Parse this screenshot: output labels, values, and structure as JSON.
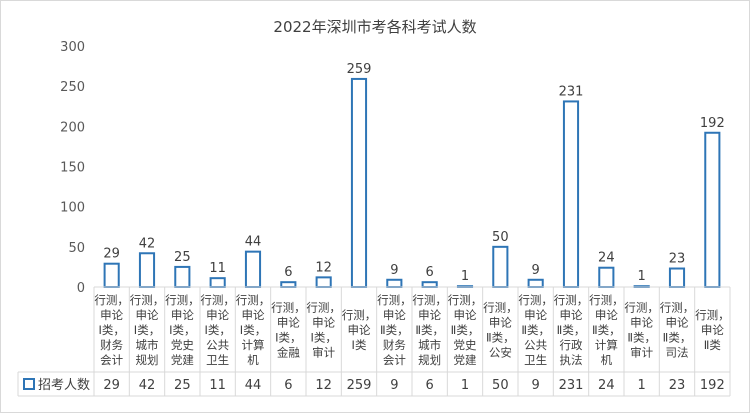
{
  "chart_data": {
    "type": "bar",
    "title": "2022年深圳市考各科考试人数",
    "ylim": [
      0,
      300
    ],
    "yticks": [
      0,
      50,
      100,
      150,
      200,
      250,
      300
    ],
    "grid": false,
    "legend": "bottom-left (data table)",
    "series": [
      {
        "name": "招考人数",
        "values": [
          29,
          42,
          25,
          11,
          44,
          6,
          12,
          259,
          9,
          6,
          1,
          50,
          9,
          231,
          24,
          1,
          23,
          192
        ]
      }
    ],
    "categories": [
      "行测，申论Ⅰ类，财务会计",
      "行测，申论Ⅰ类，城市规划",
      "行测，申论Ⅰ类，党史党建",
      "行测，申论Ⅰ类，公共卫生",
      "行测，申论Ⅰ类，计算机",
      "行测，申论Ⅰ类，金融",
      "行测，申论Ⅰ类，审计",
      "行测，申论Ⅰ类",
      "行测，申论Ⅱ类，财务会计",
      "行测，申论Ⅱ类，城市规划",
      "行测，申论Ⅱ类，党史党建",
      "行测，申论Ⅱ类，公安",
      "行测，申论Ⅱ类，公共卫生",
      "行测，申论Ⅱ类，行政执法",
      "行测，申论Ⅱ类，计算机",
      "行测，申论Ⅱ类，审计",
      "行测，申论Ⅱ类，司法",
      "行测，申论Ⅱ类"
    ],
    "category_lines": [
      [
        "行测，",
        "申论",
        "Ⅰ类，",
        "财务",
        "会计"
      ],
      [
        "行测，",
        "申论",
        "Ⅰ类，",
        "城市",
        "规划"
      ],
      [
        "行测，",
        "申论",
        "Ⅰ类，",
        "党史",
        "党建"
      ],
      [
        "行测，",
        "申论",
        "Ⅰ类，",
        "公共",
        "卫生"
      ],
      [
        "行测，",
        "申论",
        "Ⅰ类，",
        "计算",
        "机"
      ],
      [
        "行测，",
        "申论",
        "Ⅰ类，",
        "金融"
      ],
      [
        "行测，",
        "申论",
        "Ⅰ类，",
        "审计"
      ],
      [
        "行测，",
        "申论",
        "Ⅰ类"
      ],
      [
        "行测，",
        "申论",
        "Ⅱ类，",
        "财务",
        "会计"
      ],
      [
        "行测，",
        "申论",
        "Ⅱ类，",
        "城市",
        "规划"
      ],
      [
        "行测，",
        "申论",
        "Ⅱ类，",
        "党史",
        "党建"
      ],
      [
        "行测，",
        "申论",
        "Ⅱ类，",
        "公安"
      ],
      [
        "行测，",
        "申论",
        "Ⅱ类，",
        "公共",
        "卫生"
      ],
      [
        "行测，",
        "申论",
        "Ⅱ类，",
        "行政",
        "执法"
      ],
      [
        "行测，",
        "申论",
        "Ⅱ类，",
        "计算",
        "机"
      ],
      [
        "行测，",
        "申论",
        "Ⅱ类，",
        "审计"
      ],
      [
        "行测，",
        "申论",
        "Ⅱ类，",
        "司法"
      ],
      [
        "行测，",
        "申论",
        "Ⅱ类"
      ]
    ],
    "colors": {
      "bar_stroke": "#2e75b6",
      "bar_fill": "#ffffff",
      "axis": "#d9d9d9",
      "text": "#404040"
    }
  }
}
